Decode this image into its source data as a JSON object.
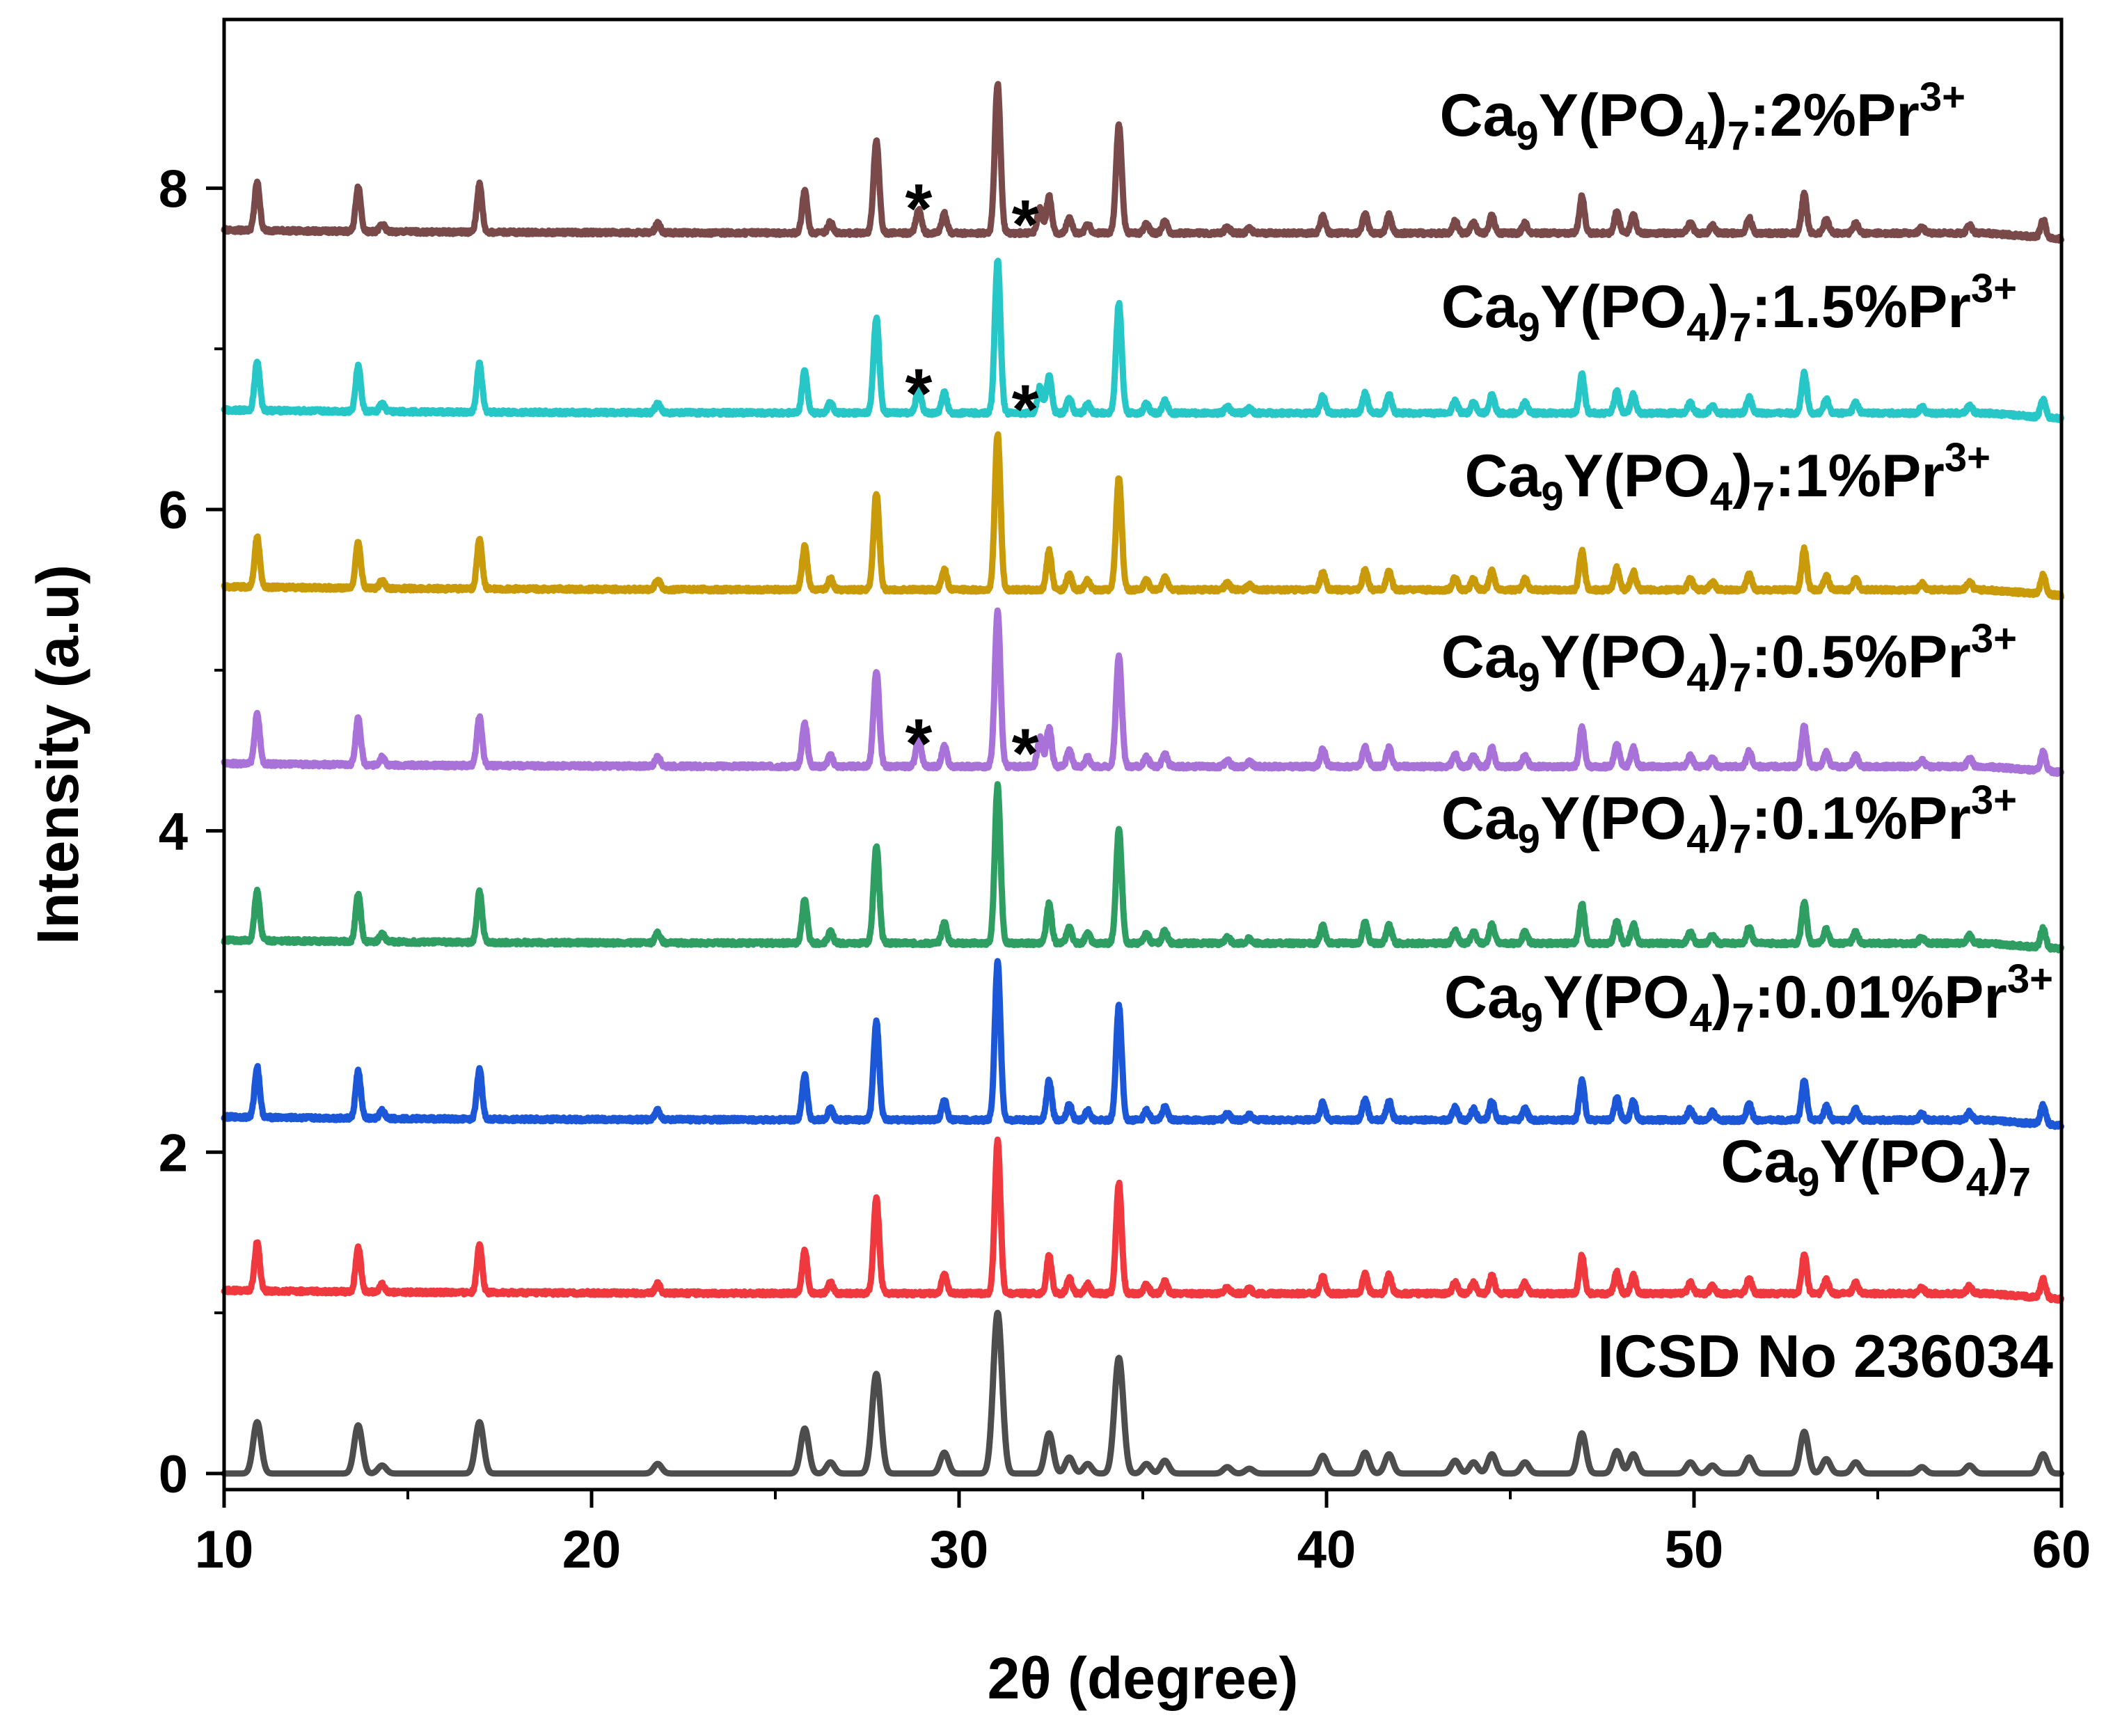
{
  "chart_data": {
    "type": "line",
    "title": "",
    "xlabel": "2θ (degree)",
    "ylabel": "Intensity (a.u)",
    "xlim": [
      10,
      60
    ],
    "ylim": [
      -0.1,
      9.05
    ],
    "xticks": [
      10,
      20,
      30,
      40,
      50,
      60
    ],
    "yticks": [
      0,
      2,
      4,
      6,
      8
    ],
    "grid": false,
    "legend": "labels placed above each pattern on the right side",
    "peaks": [
      {
        "pos": 10.9,
        "h": 0.32
      },
      {
        "pos": 13.65,
        "h": 0.3
      },
      {
        "pos": 14.3,
        "h": 0.05
      },
      {
        "pos": 16.95,
        "h": 0.32
      },
      {
        "pos": 21.8,
        "h": 0.06
      },
      {
        "pos": 25.8,
        "h": 0.28
      },
      {
        "pos": 26.5,
        "h": 0.07
      },
      {
        "pos": 27.75,
        "h": 0.62
      },
      {
        "pos": 29.6,
        "h": 0.13
      },
      {
        "pos": 31.05,
        "h": 1.0
      },
      {
        "pos": 32.45,
        "h": 0.25
      },
      {
        "pos": 33.0,
        "h": 0.1
      },
      {
        "pos": 33.5,
        "h": 0.06
      },
      {
        "pos": 34.35,
        "h": 0.72
      },
      {
        "pos": 35.1,
        "h": 0.06
      },
      {
        "pos": 35.6,
        "h": 0.08
      },
      {
        "pos": 37.3,
        "h": 0.04
      },
      {
        "pos": 37.9,
        "h": 0.03
      },
      {
        "pos": 39.9,
        "h": 0.11
      },
      {
        "pos": 41.05,
        "h": 0.13
      },
      {
        "pos": 41.7,
        "h": 0.12
      },
      {
        "pos": 43.5,
        "h": 0.08
      },
      {
        "pos": 44.0,
        "h": 0.07
      },
      {
        "pos": 44.5,
        "h": 0.12
      },
      {
        "pos": 45.4,
        "h": 0.07
      },
      {
        "pos": 46.95,
        "h": 0.25
      },
      {
        "pos": 47.9,
        "h": 0.14
      },
      {
        "pos": 48.35,
        "h": 0.12
      },
      {
        "pos": 49.9,
        "h": 0.07
      },
      {
        "pos": 50.5,
        "h": 0.05
      },
      {
        "pos": 51.5,
        "h": 0.1
      },
      {
        "pos": 53.0,
        "h": 0.26
      },
      {
        "pos": 53.6,
        "h": 0.09
      },
      {
        "pos": 54.4,
        "h": 0.07
      },
      {
        "pos": 56.2,
        "h": 0.04
      },
      {
        "pos": 57.5,
        "h": 0.05
      },
      {
        "pos": 59.5,
        "h": 0.12
      }
    ],
    "series": [
      {
        "name": "ICSD No 236034",
        "label_main": "ICSD No 236034",
        "color": "#4d4d4d",
        "baseline": 0.0,
        "scale": 1.0,
        "width": 0.11,
        "noise": 0.0,
        "impurity": 0.0
      },
      {
        "name": "Ca9Y(PO4)7",
        "label_main": "Ca",
        "sub1": "9",
        "mid1": "Y(PO",
        "sub2": "4",
        "mid2": ")",
        "sub3": "7",
        "dopant": "",
        "sup": "",
        "color": "#f0393e",
        "baseline": 1.12,
        "scale": 0.95,
        "width": 0.07,
        "noise": 0.012,
        "impurity": 0.0
      },
      {
        "name": "Ca9Y(PO4)7:0.01%Pr3+",
        "label_main": "Ca",
        "sub1": "9",
        "mid1": "Y(PO",
        "sub2": "4",
        "mid2": ")",
        "sub3": "7",
        "dopant": ":0.01%Pr",
        "sup": "3+",
        "color": "#1b57d6",
        "baseline": 2.2,
        "scale": 0.98,
        "width": 0.07,
        "noise": 0.012,
        "impurity": 0.0
      },
      {
        "name": "Ca9Y(PO4)7:0.1%Pr3+",
        "label_main": "Ca",
        "sub1": "9",
        "mid1": "Y(PO",
        "sub2": "4",
        "mid2": ")",
        "sub3": "7",
        "dopant": ":0.1%Pr",
        "sup": "3+",
        "color": "#2e9e62",
        "baseline": 3.3,
        "scale": 0.98,
        "width": 0.07,
        "noise": 0.012,
        "impurity": 0.0
      },
      {
        "name": "Ca9Y(PO4)7:0.5%Pr3+",
        "label_main": "Ca",
        "sub1": "9",
        "mid1": "Y(PO",
        "sub2": "4",
        "mid2": ")",
        "sub3": "7",
        "dopant": ":0.5%Pr",
        "sup": "3+",
        "color": "#a872d9",
        "baseline": 4.4,
        "scale": 0.96,
        "width": 0.07,
        "noise": 0.012,
        "impurity": 0.18
      },
      {
        "name": "Ca9Y(PO4)7:1%Pr3+",
        "label_main": "Ca",
        "sub1": "9",
        "mid1": "Y(PO",
        "sub2": "4",
        "mid2": ")",
        "sub3": "7",
        "dopant": ":1%Pr",
        "sup": "3+",
        "color": "#c99a09",
        "baseline": 5.5,
        "scale": 0.97,
        "width": 0.07,
        "noise": 0.012,
        "impurity": 0.0
      },
      {
        "name": "Ca9Y(PO4)7:1.5%Pr3+",
        "label_main": "Ca",
        "sub1": "9",
        "mid1": "Y(PO",
        "sub2": "4",
        "mid2": ")",
        "sub3": "7",
        "dopant": ":1.5%Pr",
        "sup": "3+",
        "color": "#27c7c7",
        "baseline": 6.6,
        "scale": 0.95,
        "width": 0.07,
        "noise": 0.012,
        "impurity": 0.16
      },
      {
        "name": "Ca9Y(PO4)7:2%Pr3+",
        "label_main": "Ca",
        "sub1": "9",
        "mid1": "Y(PO",
        "sub2": "4",
        "mid2": ")",
        "sub3": "7",
        "dopant": ":2%Pr",
        "sup": "3+",
        "color": "#7a4a4a",
        "baseline": 7.72,
        "scale": 0.93,
        "width": 0.07,
        "noise": 0.012,
        "impurity": 0.15
      }
    ],
    "impurity_peaks": [
      28.9,
      32.2
    ],
    "impurity_marker": "*",
    "annotations": [
      {
        "text": "*",
        "x": 28.9,
        "y": 7.95
      },
      {
        "text": "*",
        "x": 31.8,
        "y": 7.85
      },
      {
        "text": "*",
        "x": 28.9,
        "y": 6.8
      },
      {
        "text": "*",
        "x": 31.8,
        "y": 6.7
      },
      {
        "text": "*",
        "x": 28.9,
        "y": 4.62
      },
      {
        "text": "*",
        "x": 31.8,
        "y": 4.56
      }
    ]
  }
}
